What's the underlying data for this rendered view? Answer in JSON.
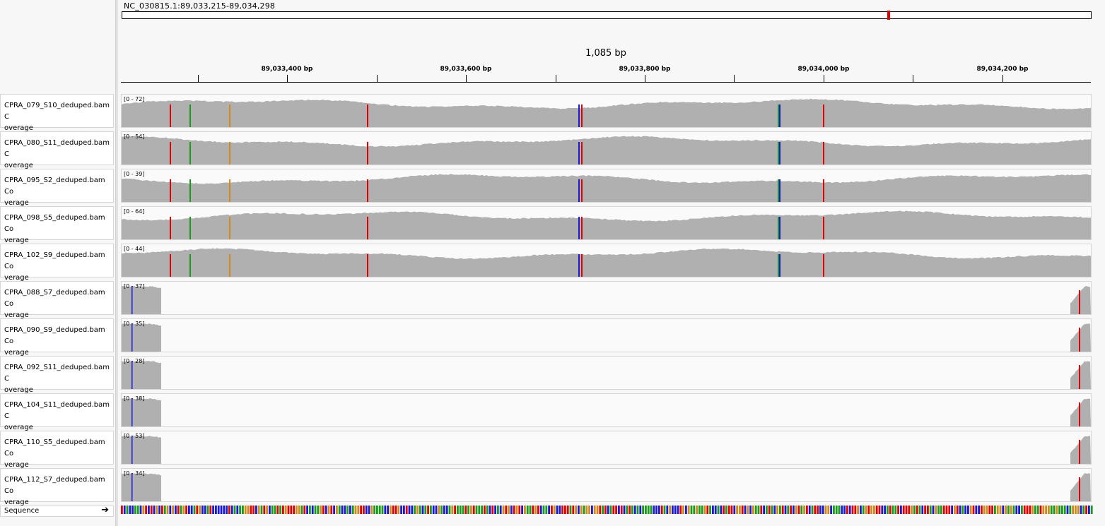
{
  "locus": "NC_030815.1:89,033,215-89,034,298",
  "span_label": "1,085 bp",
  "ruler": {
    "labels": [
      "89,033,400 bp",
      "89,033,600 bp",
      "89,033,800 bp",
      "89,034,000 bp",
      "89,034,200 bp"
    ]
  },
  "colors": {
    "coverage": "#b0b0b0",
    "A": "#1a9a1a",
    "C": "#1a1ad0",
    "G": "#d08a1a",
    "T": "#e00000"
  },
  "tracks": [
    {
      "name": "CPRA_079_S10_deduped.bam C\noverage",
      "range": "[0 - 72]",
      "type": "full"
    },
    {
      "name": "CPRA_080_S11_deduped.bam C\noverage",
      "range": "[0 - 54]",
      "type": "full"
    },
    {
      "name": "CPRA_095_S2_deduped.bam Co\nverage",
      "range": "[0 - 39]",
      "type": "full"
    },
    {
      "name": "CPRA_098_S5_deduped.bam Co\nverage",
      "range": "[0 - 64]",
      "type": "full"
    },
    {
      "name": "CPRA_102_S9_deduped.bam Co\nverage",
      "range": "[0 - 44]",
      "type": "full"
    },
    {
      "name": "CPRA_088_S7_deduped.bam Co\nverage",
      "range": "[0 - 37]",
      "type": "edges"
    },
    {
      "name": "CPRA_090_S9_deduped.bam Co\nverage",
      "range": "[0 - 35]",
      "type": "edges"
    },
    {
      "name": "CPRA_092_S11_deduped.bam C\noverage",
      "range": "[0 - 28]",
      "type": "edges"
    },
    {
      "name": "CPRA_104_S11_deduped.bam C\noverage",
      "range": "[0 - 38]",
      "type": "edges"
    },
    {
      "name": "CPRA_110_S5_deduped.bam Co\nverage",
      "range": "[0 - 53]",
      "type": "edges"
    },
    {
      "name": "CPRA_112_S7_deduped.bam Co\nverage",
      "range": "[0 - 34]",
      "type": "edges"
    }
  ],
  "sequence": {
    "label": "Sequence",
    "arrow": "forward-arrow-icon"
  }
}
